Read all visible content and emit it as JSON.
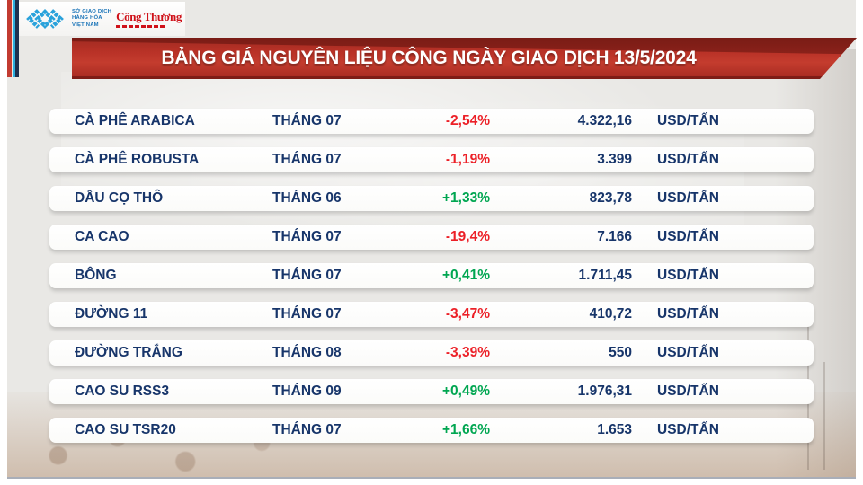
{
  "logo_bar": {
    "mxv": {
      "org_lines": [
        "SỞ GIAO DỊCH",
        "HÀNG HÓA",
        "VIỆT NAM"
      ]
    },
    "congthuong": {
      "wordmark": "Công Thương"
    }
  },
  "banner": {
    "title": "BẢNG GIÁ NGUYÊN LIỆU CÔNG NGÀY GIAO DỊCH 13/5/2024"
  },
  "table": {
    "rows": [
      {
        "name": "CÀ PHÊ ARABICA",
        "month": "THÁNG 07",
        "change": "-2,54%",
        "direction": "down",
        "price": "4.322,16",
        "unit": "USD/TẤN"
      },
      {
        "name": "CÀ PHÊ ROBUSTA",
        "month": "THÁNG 07",
        "change": "-1,19%",
        "direction": "down",
        "price": "3.399",
        "unit": "USD/TẤN"
      },
      {
        "name": "DẦU CỌ THÔ",
        "month": "THÁNG 06",
        "change": "+1,33%",
        "direction": "up",
        "price": "823,78",
        "unit": "USD/TẤN"
      },
      {
        "name": "CA CAO",
        "month": "THÁNG 07",
        "change": "-19,4%",
        "direction": "down",
        "price": "7.166",
        "unit": "USD/TẤN"
      },
      {
        "name": "BÔNG",
        "month": "THÁNG 07",
        "change": "+0,41%",
        "direction": "up",
        "price": "1.711,45",
        "unit": "USD/TẤN"
      },
      {
        "name": "ĐƯỜNG 11",
        "month": "THÁNG 07",
        "change": "-3,47%",
        "direction": "down",
        "price": "410,72",
        "unit": "USD/TẤN"
      },
      {
        "name": "ĐƯỜNG TRẮNG",
        "month": "THÁNG 08",
        "change": "-3,39%",
        "direction": "down",
        "price": "550",
        "unit": "USD/TẤN"
      },
      {
        "name": "CAO SU RSS3",
        "month": "THÁNG 09",
        "change": "+0,49%",
        "direction": "up",
        "price": "1.976,31",
        "unit": "USD/TẤN"
      },
      {
        "name": "CAO SU TSR20",
        "month": "THÁNG 07",
        "change": "+1,66%",
        "direction": "up",
        "price": "1.653",
        "unit": "USD/TẤN"
      }
    ]
  },
  "colors": {
    "navy_text": "#17356a",
    "down_red": "#ec2027",
    "up_green": "#00a651",
    "banner_red": "#b93227",
    "stripe_red": "#c23b31",
    "stripe_cyan": "#2badde",
    "stripe_navy": "#1e3050",
    "mxv_blue": "#2aa2db",
    "logo_red": "#cf1119"
  },
  "chart_data": {
    "type": "table",
    "title": "BẢNG GIÁ NGUYÊN LIỆU CÔNG NGÀY GIAO DỊCH 13/5/2024",
    "columns": [
      "commodity",
      "contract_month",
      "change_percent",
      "price",
      "unit"
    ],
    "rows": [
      [
        "CÀ PHÊ ARABICA",
        "THÁNG 07",
        "-2,54%",
        "4.322,16",
        "USD/TẤN"
      ],
      [
        "CÀ PHÊ ROBUSTA",
        "THÁNG 07",
        "-1,19%",
        "3.399",
        "USD/TẤN"
      ],
      [
        "DẦU CỌ THÔ",
        "THÁNG 06",
        "+1,33%",
        "823,78",
        "USD/TẤN"
      ],
      [
        "CA CAO",
        "THÁNG 07",
        "-19,4%",
        "7.166",
        "USD/TẤN"
      ],
      [
        "BÔNG",
        "THÁNG 07",
        "+0,41%",
        "1.711,45",
        "USD/TẤN"
      ],
      [
        "ĐƯỜNG 11",
        "THÁNG 07",
        "-3,47%",
        "410,72",
        "USD/TẤN"
      ],
      [
        "ĐƯỜNG TRẮNG",
        "THÁNG 08",
        "-3,39%",
        "550",
        "USD/TẤN"
      ],
      [
        "CAO SU RSS3",
        "THÁNG 09",
        "+0,49%",
        "1.976,31",
        "USD/TẤN"
      ],
      [
        "CAO SU TSR20",
        "THÁNG 07",
        "+1,66%",
        "1.653",
        "USD/TẤN"
      ]
    ]
  }
}
